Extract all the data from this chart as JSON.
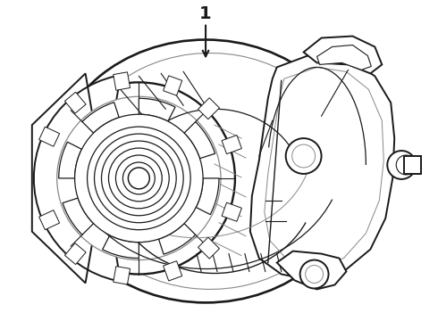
{
  "background_color": "#ffffff",
  "line_color": "#1a1a1a",
  "line_color_gray": "#888888",
  "line_width": 1.4,
  "label_text": "1",
  "fig_width": 4.9,
  "fig_height": 3.6,
  "dpi": 100
}
